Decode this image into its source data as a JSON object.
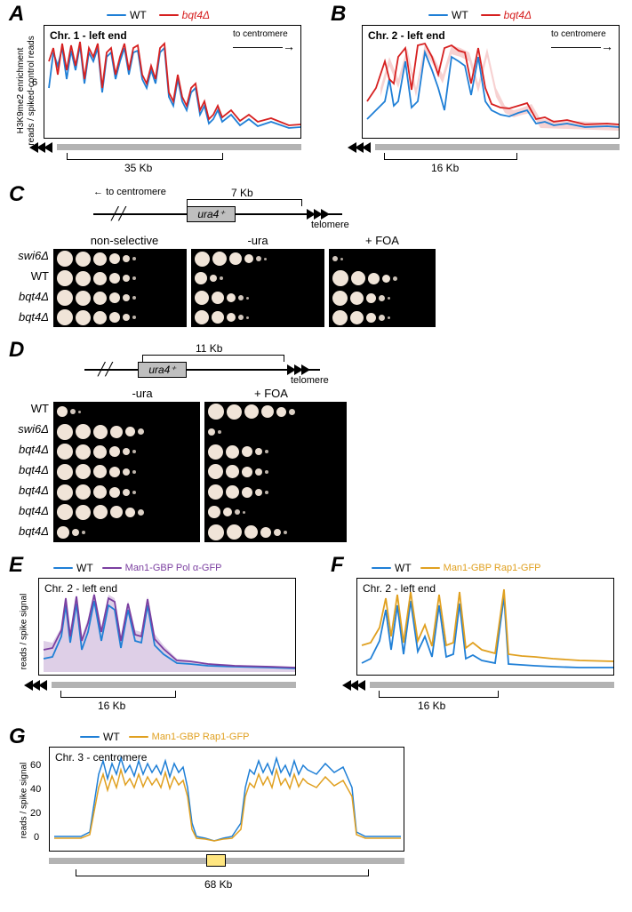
{
  "panelA": {
    "label": "A",
    "legend": {
      "wt": "WT",
      "wt_color": "#1f7fd6",
      "mut": "bqt4Δ",
      "mut_color": "#d62020"
    },
    "title": "Chr. 1 - left end",
    "to_centromere": "to centromere",
    "y_label": "H3K9me2 enrichment\nreads / spiked-control reads",
    "scale_label": "35 Kb",
    "ytick": "6"
  },
  "panelB": {
    "label": "B",
    "legend": {
      "wt": "WT",
      "wt_color": "#1f7fd6",
      "mut": "bqt4Δ",
      "mut_color": "#d62020"
    },
    "title": "Chr. 2 - left end",
    "to_centromere": "to centromere",
    "scale_label": "16 Kb"
  },
  "panelC": {
    "label": "C",
    "diagram": {
      "to_centromere": "to centromere",
      "distance": "7 Kb",
      "gene": "ura4⁺",
      "telomere": "telomere"
    },
    "conditions": [
      "non-selective",
      "-ura",
      "+ FOA"
    ],
    "strains": [
      "swi6Δ",
      "WT",
      "bqt4Δ",
      "bqt4Δ"
    ]
  },
  "panelD": {
    "label": "D",
    "diagram": {
      "distance": "11 Kb",
      "gene": "ura4⁺",
      "telomere": "telomere"
    },
    "conditions": [
      "-ura",
      "+ FOA"
    ],
    "strains": [
      "WT",
      "swi6Δ",
      "bqt4Δ",
      "bqt4Δ",
      "bqt4Δ",
      "bqt4Δ",
      "bqt4Δ"
    ]
  },
  "panelE": {
    "label": "E",
    "legend": {
      "wt": "WT",
      "wt_color": "#1f7fd6",
      "tether": "Man1-GBP Pol α-GFP",
      "tether_color": "#7b3fa0"
    },
    "title": "Chr. 2 - left end",
    "y_label": "reads / spike signal",
    "scale_label": "16 Kb"
  },
  "panelF": {
    "label": "F",
    "legend": {
      "wt": "WT",
      "wt_color": "#1f7fd6",
      "tether": "Man1-GBP Rap1-GFP",
      "tether_color": "#e0a020"
    },
    "title": "Chr. 2 - left end",
    "scale_label": "16 Kb"
  },
  "panelG": {
    "label": "G",
    "legend": {
      "wt": "WT",
      "wt_color": "#1f7fd6",
      "tether": "Man1-GBP Rap1-GFP",
      "tether_color": "#e0a020"
    },
    "title": "Chr. 3 - centromere",
    "y_label": "reads / spike signal",
    "scale_label": "68 Kb",
    "yticks": [
      "0",
      "20",
      "40",
      "60"
    ]
  }
}
